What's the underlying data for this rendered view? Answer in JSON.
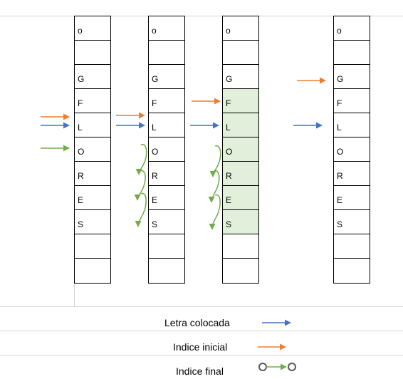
{
  "columns": [
    {
      "cells": [
        "o",
        "",
        "G",
        "F",
        "L",
        "O",
        "R",
        "E",
        "S",
        "",
        ""
      ],
      "highlighted_rows": []
    },
    {
      "cells": [
        "o",
        "",
        "G",
        "F",
        "L",
        "O",
        "R",
        "E",
        "S",
        "",
        ""
      ],
      "highlighted_rows": []
    },
    {
      "cells": [
        "o",
        "",
        "G",
        "F",
        "L",
        "O",
        "R",
        "E",
        "S",
        "",
        ""
      ],
      "highlighted_rows": [
        3,
        4,
        5,
        6,
        7,
        8
      ]
    },
    {
      "cells": [
        "o",
        "",
        "G",
        "F",
        "L",
        "O",
        "R",
        "E",
        "S",
        "",
        ""
      ],
      "highlighted_rows": []
    }
  ],
  "legend": {
    "letter_placed": "Letra colocada",
    "initial_index": "Indice inicial",
    "final_index": "Indice final"
  },
  "colors": {
    "blue_arrow": "#4472c4",
    "orange_arrow": "#ed7d31",
    "green_arrow": "#70ad47",
    "highlight": "#e2efda",
    "gridline": "#d4d4d4"
  }
}
